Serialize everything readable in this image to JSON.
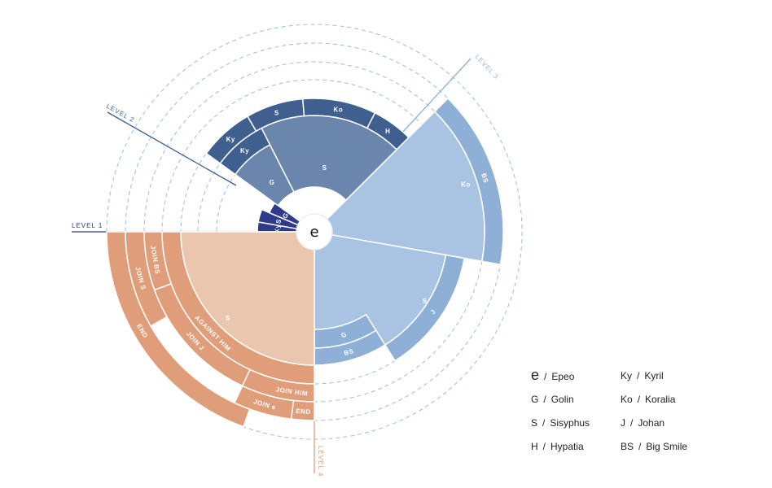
{
  "center": {
    "label": "e"
  },
  "levels": [
    {
      "id": "level-1",
      "label": "LEVEL 1"
    },
    {
      "id": "level-2",
      "label": "LEVEL 2"
    },
    {
      "id": "level-3",
      "label": "LEVEL 3"
    },
    {
      "id": "level-4",
      "label": "LEVEL 4"
    }
  ],
  "colors": {
    "level1_dark": "#2e3a8c",
    "level2_dark": "#3f5f8f",
    "level2_mid": "#6a86ad",
    "level3_light": "#a9c3e2",
    "level3_mid": "#8fb0d6",
    "level4_light": "#ebc6af",
    "level4_mid": "#df9d79",
    "dashed_ring": "#9dbde0"
  },
  "segments": [
    {
      "name": "seg-l1-ky",
      "label": "Ky"
    },
    {
      "name": "seg-l1-s",
      "label": "S"
    },
    {
      "name": "seg-l1-g",
      "label": "G"
    },
    {
      "name": "seg-l2-g",
      "label": "G"
    },
    {
      "name": "seg-l2-s",
      "label": "S"
    },
    {
      "name": "seg-l2-ky-mid",
      "label": "Ky"
    },
    {
      "name": "seg-l2-ky-outer",
      "label": "Ky"
    },
    {
      "name": "seg-l2-s-outer",
      "label": "S"
    },
    {
      "name": "seg-l2-ko",
      "label": "Ko"
    },
    {
      "name": "seg-l2-h",
      "label": "H"
    },
    {
      "name": "seg-l3-ko",
      "label": "Ko"
    },
    {
      "name": "seg-l3-bs-top",
      "label": "BS"
    },
    {
      "name": "seg-l3-s",
      "label": "S"
    },
    {
      "name": "seg-l3-j",
      "label": "J"
    },
    {
      "name": "seg-l3-g",
      "label": "G"
    },
    {
      "name": "seg-l3-bs-bottom",
      "label": "BS"
    },
    {
      "name": "seg-l4-s",
      "label": "S"
    },
    {
      "name": "seg-l4-against-him",
      "label": "AGAINST HIM"
    },
    {
      "name": "seg-l4-join-j",
      "label": "JOIN J"
    },
    {
      "name": "seg-l4-join-bs",
      "label": "JOIN BS"
    },
    {
      "name": "seg-l4-join-s",
      "label": "JOIN S"
    },
    {
      "name": "seg-l4-end-left",
      "label": "END"
    },
    {
      "name": "seg-l4-join-e",
      "label": "JOIN e"
    },
    {
      "name": "seg-l4-join-him",
      "label": "JOIN HIM"
    },
    {
      "name": "seg-l4-end-bottom",
      "label": "END"
    }
  ],
  "legend": [
    {
      "abbr": "e",
      "name": "Epeo"
    },
    {
      "abbr": "Ky",
      "name": "Kyril"
    },
    {
      "abbr": "G",
      "name": "Golin"
    },
    {
      "abbr": "Ko",
      "name": "Koralia"
    },
    {
      "abbr": "S",
      "name": "Sisyphus"
    },
    {
      "abbr": "J",
      "name": "Johan"
    },
    {
      "abbr": "H",
      "name": "Hypatia"
    },
    {
      "abbr": "BS",
      "name": "Big Smile"
    }
  ],
  "legend_separator": "/"
}
